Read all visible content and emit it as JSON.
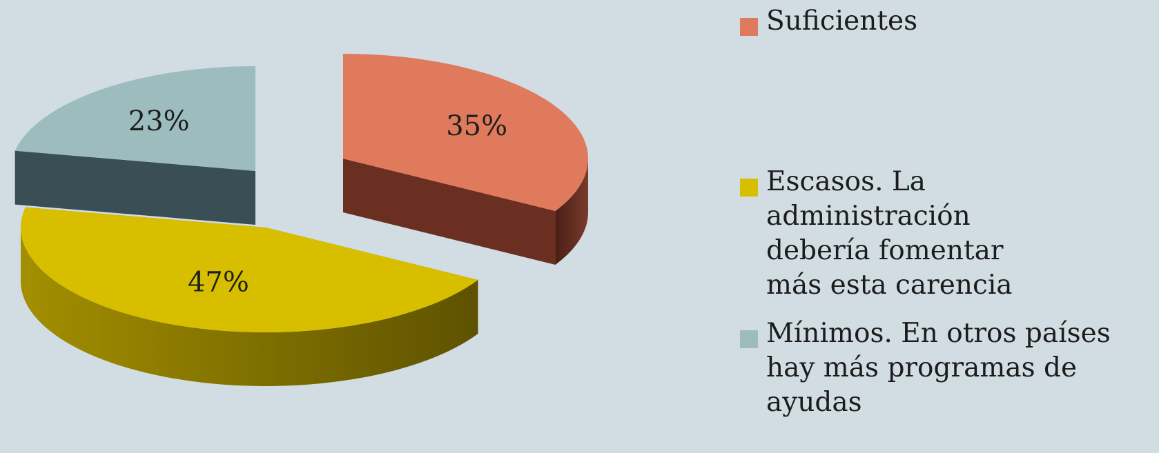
{
  "chart_data": {
    "type": "pie",
    "title": "",
    "exploded": true,
    "three_d": true,
    "legend_position": "right",
    "slices": [
      {
        "label": "Suficientes",
        "value": 35,
        "data_label": "35%",
        "color": "#e07a5d",
        "side_color": "#6b2f22"
      },
      {
        "label": "Escasos. La administración debería fomentar más esta carencia",
        "value": 47,
        "data_label": "47%",
        "color": "#d7bf00",
        "side_color": "#7a6a00"
      },
      {
        "label": "Mínimos. En otros países hay más programas de ayudas",
        "value": 23,
        "data_label": "23%",
        "color": "#9dbcbe",
        "side_color": "#3a4e55"
      }
    ]
  }
}
